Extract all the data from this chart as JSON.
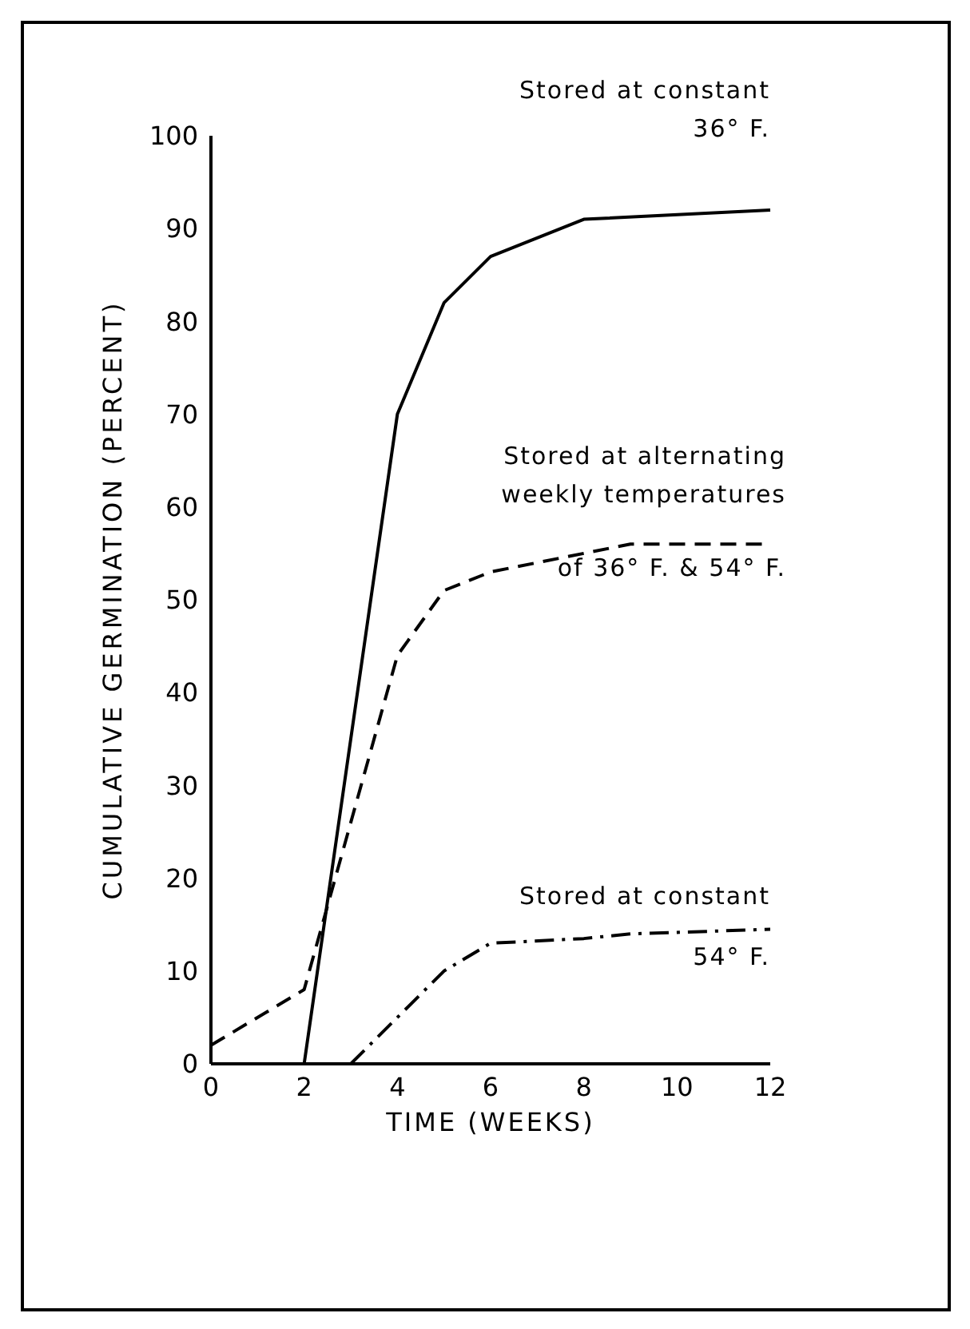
{
  "chart_data": {
    "type": "line",
    "xlabel": "TIME  (WEEKS)",
    "ylabel": "CUMULATIVE  GERMINATION  (PERCENT)",
    "xlim": [
      0,
      12
    ],
    "ylim": [
      0,
      100
    ],
    "xticks": [
      0,
      2,
      4,
      6,
      8,
      10,
      12
    ],
    "yticks": [
      0,
      10,
      20,
      30,
      40,
      50,
      60,
      70,
      80,
      90,
      100
    ],
    "grid": false,
    "marker": "none",
    "series": [
      {
        "name": "Stored at constant\n36° F.",
        "color": "#000000",
        "line_style": "solid",
        "x": [
          2,
          4,
          5,
          6,
          8,
          12
        ],
        "values": [
          0,
          70,
          82,
          87,
          91,
          92
        ]
      },
      {
        "name": "Stored at alternating\nweekly temperatures\nof 36° F. & 54° F.",
        "color": "#000000",
        "line_style": "dashed",
        "x": [
          0,
          2,
          4,
          5,
          6,
          8,
          9,
          12
        ],
        "values": [
          2,
          8,
          44,
          51,
          53,
          55,
          56,
          56
        ]
      },
      {
        "name": "Stored at constant\n54° F.",
        "color": "#000000",
        "line_style": "dashdot",
        "x": [
          3,
          5,
          6,
          8,
          9,
          12
        ],
        "values": [
          0,
          10,
          13,
          13.5,
          14,
          14.5
        ]
      }
    ]
  }
}
